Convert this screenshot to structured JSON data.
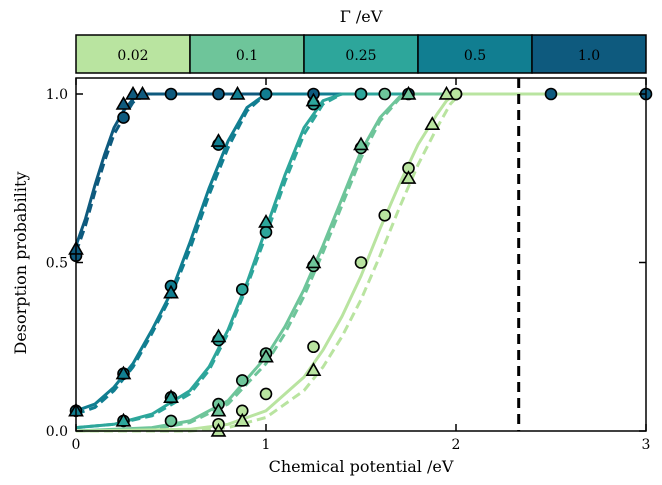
{
  "chart_data": {
    "type": "line",
    "xlabel": "Chemical potential /eV",
    "ylabel": "Desorption probability",
    "xlim": [
      0,
      3
    ],
    "ylim": [
      0,
      1
    ],
    "x_ticks": [
      0,
      1,
      2,
      3
    ],
    "x_tick_labels": [
      "0",
      "1",
      "2",
      "3"
    ],
    "y_ticks": [
      0.0,
      0.5,
      1.0
    ],
    "y_tick_labels": [
      "0.0",
      "0.5",
      "1.0"
    ],
    "vertical_dashed_line_x": 2.33,
    "colorbar": {
      "title": "Γ /eV",
      "labels": [
        "0.02",
        "0.1",
        "0.25",
        "0.5",
        "1.0"
      ],
      "colors": [
        "#b9e4a0",
        "#6ec59a",
        "#2da69b",
        "#117e91",
        "#0e5a7e"
      ]
    },
    "series": [
      {
        "color": "#0e5a7e",
        "solid": [
          [
            0,
            0.55
          ],
          [
            0.05,
            0.63
          ],
          [
            0.1,
            0.73
          ],
          [
            0.15,
            0.82
          ],
          [
            0.2,
            0.9
          ],
          [
            0.25,
            0.95
          ],
          [
            0.3,
            0.985
          ],
          [
            0.35,
            1.0
          ],
          [
            3,
            1.0
          ]
        ],
        "dashed": [
          [
            0,
            0.53
          ],
          [
            0.05,
            0.61
          ],
          [
            0.1,
            0.71
          ],
          [
            0.15,
            0.8
          ],
          [
            0.2,
            0.88
          ],
          [
            0.25,
            0.93
          ],
          [
            0.3,
            0.975
          ],
          [
            0.35,
            0.995
          ],
          [
            0.4,
            1.0
          ],
          [
            3,
            1.0
          ]
        ],
        "circles": [
          [
            0,
            0.52
          ],
          [
            0.25,
            0.93
          ],
          [
            0.5,
            1.0
          ],
          [
            0.75,
            1.0
          ],
          [
            1.0,
            1.0
          ],
          [
            1.25,
            1.0
          ],
          [
            1.5,
            1.0
          ],
          [
            1.75,
            1.0
          ],
          [
            2.0,
            1.0
          ],
          [
            2.5,
            1.0
          ],
          [
            3.0,
            1.0
          ]
        ],
        "triangles": [
          [
            0,
            0.54
          ],
          [
            0.25,
            0.97
          ],
          [
            0.3,
            1.0
          ],
          [
            0.35,
            1.0
          ]
        ]
      },
      {
        "color": "#117e91",
        "solid": [
          [
            0,
            0.06
          ],
          [
            0.1,
            0.08
          ],
          [
            0.2,
            0.13
          ],
          [
            0.3,
            0.2
          ],
          [
            0.4,
            0.3
          ],
          [
            0.5,
            0.41
          ],
          [
            0.6,
            0.56
          ],
          [
            0.7,
            0.72
          ],
          [
            0.8,
            0.86
          ],
          [
            0.9,
            0.96
          ],
          [
            1.0,
            1.0
          ],
          [
            3,
            1.0
          ]
        ],
        "dashed": [
          [
            0,
            0.05
          ],
          [
            0.1,
            0.07
          ],
          [
            0.2,
            0.12
          ],
          [
            0.3,
            0.19
          ],
          [
            0.4,
            0.29
          ],
          [
            0.5,
            0.4
          ],
          [
            0.6,
            0.54
          ],
          [
            0.7,
            0.7
          ],
          [
            0.8,
            0.84
          ],
          [
            0.9,
            0.95
          ],
          [
            1.0,
            1.0
          ],
          [
            3,
            1.0
          ]
        ],
        "circles": [
          [
            0,
            0.06
          ],
          [
            0.25,
            0.17
          ],
          [
            0.5,
            0.43
          ],
          [
            0.75,
            0.85
          ],
          [
            1.0,
            1.0
          ]
        ],
        "triangles": [
          [
            0,
            0.06
          ],
          [
            0.25,
            0.17
          ],
          [
            0.5,
            0.41
          ],
          [
            0.75,
            0.86
          ],
          [
            0.85,
            1.0
          ]
        ]
      },
      {
        "color": "#2da69b",
        "solid": [
          [
            0,
            0.01
          ],
          [
            0.2,
            0.02
          ],
          [
            0.4,
            0.05
          ],
          [
            0.6,
            0.12
          ],
          [
            0.7,
            0.19
          ],
          [
            0.8,
            0.3
          ],
          [
            0.9,
            0.44
          ],
          [
            1.0,
            0.6
          ],
          [
            1.1,
            0.76
          ],
          [
            1.2,
            0.9
          ],
          [
            1.3,
            0.98
          ],
          [
            1.4,
            1.0
          ],
          [
            3,
            1.0
          ]
        ],
        "dashed": [
          [
            0,
            0.01
          ],
          [
            0.2,
            0.02
          ],
          [
            0.4,
            0.045
          ],
          [
            0.6,
            0.11
          ],
          [
            0.7,
            0.18
          ],
          [
            0.8,
            0.29
          ],
          [
            0.9,
            0.43
          ],
          [
            1.0,
            0.58
          ],
          [
            1.1,
            0.74
          ],
          [
            1.2,
            0.88
          ],
          [
            1.3,
            0.97
          ],
          [
            1.4,
            1.0
          ],
          [
            3,
            1.0
          ]
        ],
        "circles": [
          [
            0.25,
            0.03
          ],
          [
            0.5,
            0.1
          ],
          [
            0.75,
            0.27
          ],
          [
            0.875,
            0.42
          ],
          [
            1.0,
            0.59
          ],
          [
            1.25,
            0.97
          ],
          [
            1.5,
            1.0
          ]
        ],
        "triangles": [
          [
            0.25,
            0.03
          ],
          [
            0.5,
            0.1
          ],
          [
            0.75,
            0.28
          ],
          [
            1.0,
            0.62
          ],
          [
            1.25,
            0.98
          ]
        ]
      },
      {
        "color": "#6ec59a",
        "solid": [
          [
            0,
            0.0
          ],
          [
            0.4,
            0.01
          ],
          [
            0.6,
            0.03
          ],
          [
            0.8,
            0.09
          ],
          [
            1.0,
            0.22
          ],
          [
            1.1,
            0.31
          ],
          [
            1.2,
            0.42
          ],
          [
            1.3,
            0.55
          ],
          [
            1.4,
            0.69
          ],
          [
            1.5,
            0.83
          ],
          [
            1.6,
            0.93
          ],
          [
            1.7,
            0.99
          ],
          [
            1.75,
            1.0
          ],
          [
            3,
            1.0
          ]
        ],
        "dashed": [
          [
            0,
            0.0
          ],
          [
            0.4,
            0.005
          ],
          [
            0.6,
            0.025
          ],
          [
            0.8,
            0.08
          ],
          [
            1.0,
            0.2
          ],
          [
            1.1,
            0.29
          ],
          [
            1.2,
            0.4
          ],
          [
            1.3,
            0.53
          ],
          [
            1.4,
            0.67
          ],
          [
            1.5,
            0.81
          ],
          [
            1.6,
            0.92
          ],
          [
            1.7,
            0.985
          ],
          [
            1.78,
            1.0
          ],
          [
            3,
            1.0
          ]
        ],
        "circles": [
          [
            0.5,
            0.03
          ],
          [
            0.75,
            0.08
          ],
          [
            0.875,
            0.15
          ],
          [
            1.0,
            0.23
          ],
          [
            1.25,
            0.49
          ],
          [
            1.5,
            0.84
          ],
          [
            1.625,
            1.0
          ]
        ],
        "triangles": [
          [
            0.75,
            0.06
          ],
          [
            1.0,
            0.22
          ],
          [
            1.25,
            0.5
          ],
          [
            1.5,
            0.85
          ],
          [
            1.75,
            1.0
          ]
        ]
      },
      {
        "color": "#b9e4a0",
        "solid": [
          [
            0,
            0.0
          ],
          [
            0.6,
            0.005
          ],
          [
            0.8,
            0.02
          ],
          [
            1.0,
            0.06
          ],
          [
            1.2,
            0.16
          ],
          [
            1.3,
            0.24
          ],
          [
            1.4,
            0.34
          ],
          [
            1.5,
            0.46
          ],
          [
            1.6,
            0.6
          ],
          [
            1.7,
            0.73
          ],
          [
            1.8,
            0.85
          ],
          [
            1.9,
            0.94
          ],
          [
            1.95,
            0.98
          ],
          [
            2.0,
            1.0
          ],
          [
            3,
            1.0
          ]
        ],
        "dashed": [
          [
            0,
            0.0
          ],
          [
            0.6,
            0.0
          ],
          [
            0.8,
            0.01
          ],
          [
            1.0,
            0.04
          ],
          [
            1.2,
            0.12
          ],
          [
            1.3,
            0.19
          ],
          [
            1.4,
            0.28
          ],
          [
            1.5,
            0.39
          ],
          [
            1.6,
            0.52
          ],
          [
            1.7,
            0.66
          ],
          [
            1.8,
            0.79
          ],
          [
            1.9,
            0.9
          ],
          [
            1.97,
            0.97
          ],
          [
            2.02,
            1.0
          ],
          [
            3,
            1.0
          ]
        ],
        "circles": [
          [
            0.75,
            0.02
          ],
          [
            0.875,
            0.06
          ],
          [
            1.0,
            0.11
          ],
          [
            1.25,
            0.25
          ],
          [
            1.5,
            0.5
          ],
          [
            1.625,
            0.64
          ],
          [
            1.75,
            0.78
          ],
          [
            2.0,
            1.0
          ]
        ],
        "triangles": [
          [
            0.75,
            0.0
          ],
          [
            0.875,
            0.03
          ],
          [
            1.25,
            0.18
          ],
          [
            1.75,
            0.75
          ],
          [
            1.875,
            0.91
          ],
          [
            1.95,
            1.0
          ]
        ]
      }
    ]
  }
}
